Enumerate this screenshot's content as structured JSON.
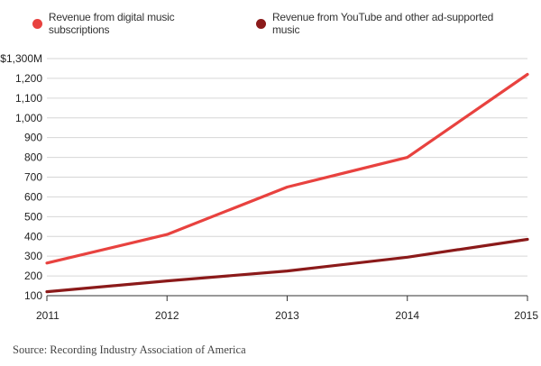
{
  "chart_data": {
    "type": "line",
    "title": "",
    "xlabel": "",
    "ylabel": "",
    "x": [
      2011,
      2012,
      2013,
      2014,
      2015
    ],
    "x_tick_labels": [
      "2011",
      "2012",
      "2013",
      "2014",
      "2015"
    ],
    "y_tick_labels": [
      "$1,300M",
      "1,200",
      "1,100",
      "1,000",
      "900",
      "800",
      "700",
      "600",
      "500",
      "400",
      "300",
      "200",
      "100"
    ],
    "y_ticks": [
      1300,
      1200,
      1100,
      1000,
      900,
      800,
      700,
      600,
      500,
      400,
      300,
      200,
      100
    ],
    "ylim": [
      100,
      1300
    ],
    "xlim": [
      2011,
      2015
    ],
    "grid": true,
    "legend_position": "top-left",
    "series": [
      {
        "name": "Revenue from digital music subscriptions",
        "color": "#e8423f",
        "values": [
          265,
          410,
          650,
          800,
          1220
        ]
      },
      {
        "name": "Revenue from YouTube and other ad-supported music",
        "color": "#8b1a1a",
        "values": [
          120,
          175,
          225,
          295,
          385
        ]
      }
    ]
  },
  "source_text": "Source: Recording Industry Association of America"
}
